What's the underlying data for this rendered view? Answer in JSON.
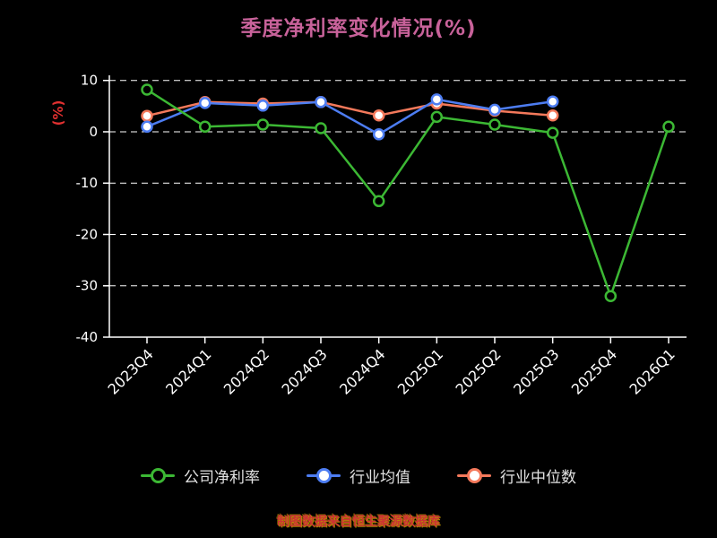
{
  "chart_data": {
    "type": "line",
    "title": "季度净利率变化情况(%)",
    "ylabel": "(%)",
    "categories": [
      "2023Q4",
      "2024Q1",
      "2024Q2",
      "2024Q3",
      "2024Q4",
      "2025Q1",
      "2025Q2",
      "2025Q3",
      "2025Q4",
      "2026Q1"
    ],
    "series": [
      {
        "name": "公司净利率",
        "color": "#3cb834",
        "marker_fill": "#000000",
        "values": [
          8.2,
          1.0,
          1.4,
          0.7,
          -13.5,
          2.9,
          1.4,
          -0.2,
          -32.0,
          1.0
        ]
      },
      {
        "name": "行业均值",
        "color": "#4d7df2",
        "marker_fill": "#ffffff",
        "values": [
          1.0,
          5.6,
          5.1,
          5.8,
          -0.5,
          6.3,
          4.3,
          5.9,
          null,
          null
        ]
      },
      {
        "name": "行业中位数",
        "color": "#f4795b",
        "marker_fill": "#ffffff",
        "values": [
          3.1,
          5.8,
          5.5,
          5.8,
          3.2,
          5.5,
          4.1,
          3.2,
          null,
          null
        ]
      }
    ],
    "yticks": [
      10,
      0,
      -10,
      -20,
      -30,
      -40
    ],
    "ylim": [
      -40,
      11
    ],
    "grid": "horizontal-dashed",
    "legend_position": "bottom",
    "colors": {
      "background": "#000000",
      "title": "#c8629a",
      "ylabel": "#e03030",
      "axis": "#ffffff",
      "grid": "#ffffff",
      "tick_labels": "#ffffff",
      "legend_text": "#e2e2e2",
      "footer": "#cc3333"
    }
  },
  "footer": {
    "text": "制图数据来自恒生聚源数据库"
  }
}
